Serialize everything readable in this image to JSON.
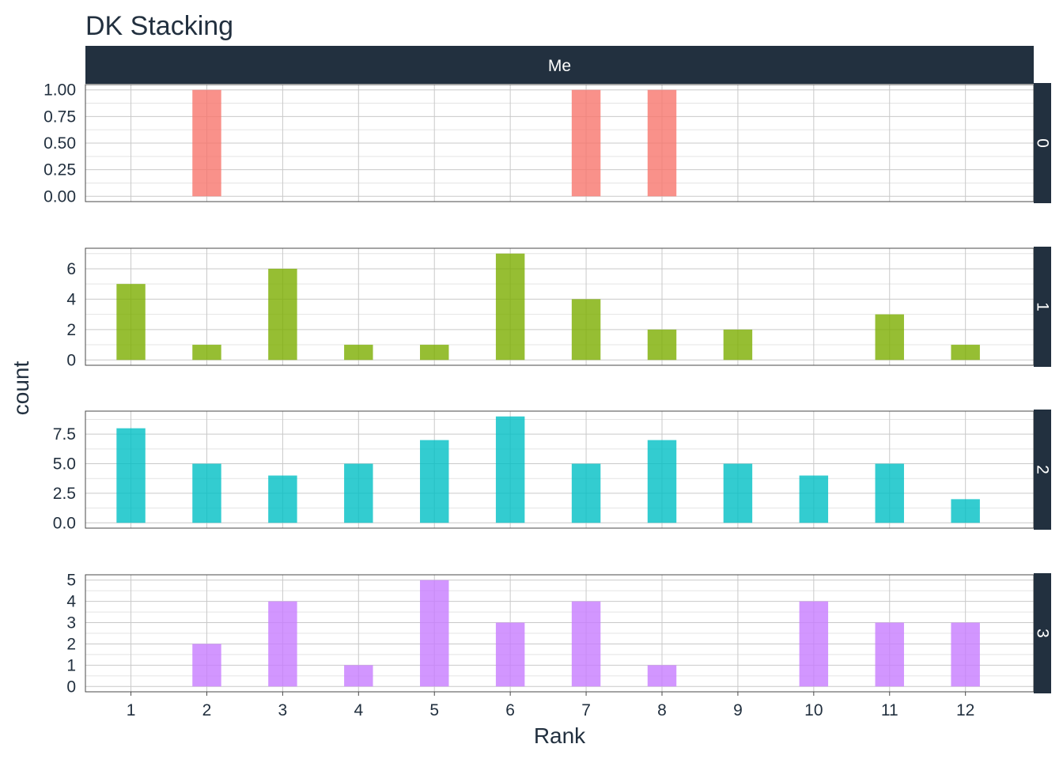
{
  "chart_data": {
    "type": "bar",
    "title": "DK Stacking",
    "xlabel": "Rank",
    "ylabel": "count",
    "column_facet": "Me",
    "categories": [
      1,
      2,
      3,
      4,
      5,
      6,
      7,
      8,
      9,
      10,
      11,
      12
    ],
    "xlim": [
      0.4,
      12.9
    ],
    "grid": true,
    "legend": "none",
    "panels": [
      {
        "name": "0",
        "color": "#F8766D",
        "values": [
          0,
          1,
          0,
          0,
          0,
          0,
          1,
          1,
          0,
          0,
          0,
          0
        ],
        "yticks": [
          0,
          0.25,
          0.5,
          0.75,
          1.0
        ],
        "ytick_labels": [
          "0.00",
          "0.25",
          "0.50",
          "0.75",
          "1.00"
        ],
        "ylim": [
          -0.05,
          1.05
        ]
      },
      {
        "name": "1",
        "color": "#7CAE00",
        "values": [
          5,
          1,
          6,
          1,
          1,
          7,
          4,
          2,
          2,
          0,
          3,
          1
        ],
        "yticks": [
          0,
          2,
          4,
          6
        ],
        "ytick_labels": [
          "0",
          "2",
          "4",
          "6"
        ],
        "ylim": [
          -0.35,
          7.35
        ]
      },
      {
        "name": "2",
        "color": "#00BFC4",
        "values": [
          8,
          5,
          4,
          5,
          7,
          9,
          5,
          7,
          5,
          4,
          5,
          2
        ],
        "yticks": [
          0,
          2.5,
          5,
          7.5
        ],
        "ytick_labels": [
          "0.0",
          "2.5",
          "5.0",
          "7.5"
        ],
        "ylim": [
          -0.45,
          9.45
        ]
      },
      {
        "name": "3",
        "color": "#C77CFF",
        "values": [
          0,
          2,
          4,
          1,
          5,
          3,
          4,
          1,
          0,
          4,
          3,
          3
        ],
        "yticks": [
          0,
          1,
          2,
          3,
          4,
          5
        ],
        "ytick_labels": [
          "0",
          "1",
          "2",
          "3",
          "4",
          "5"
        ],
        "ylim": [
          -0.25,
          5.25
        ]
      }
    ],
    "x_tick_labels": [
      "1",
      "2",
      "3",
      "4",
      "5",
      "6",
      "7",
      "8",
      "9",
      "10",
      "11",
      "12"
    ],
    "strip_color": "#22303f",
    "text_color": "#22303f"
  }
}
